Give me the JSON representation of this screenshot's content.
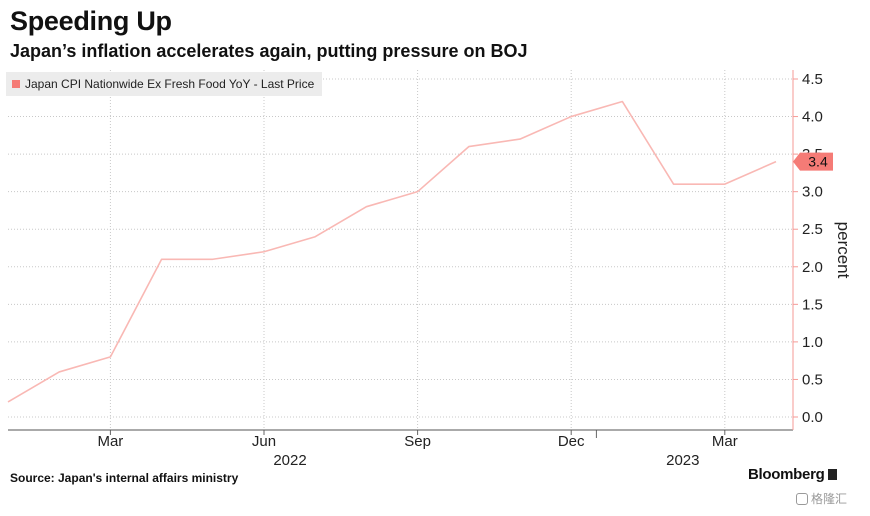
{
  "header": {
    "title": "Speeding Up",
    "subtitle": "Japan’s inflation accelerates again, putting pressure on BOJ"
  },
  "colors": {
    "series_line": "#f9b8b4",
    "marker": "#f57b76",
    "axis": "#f59a96",
    "grid": "#c8c8c8"
  },
  "chart_data": {
    "type": "line",
    "x": [
      "2022-01",
      "2022-02",
      "2022-03",
      "2022-04",
      "2022-05",
      "2022-06",
      "2022-07",
      "2022-08",
      "2022-09",
      "2022-10",
      "2022-11",
      "2022-12",
      "2023-01",
      "2023-02",
      "2023-03",
      "2023-04"
    ],
    "series": [
      {
        "name": "Japan CPI Nationwide Ex Fresh Food YoY - Last Price",
        "values": [
          0.2,
          0.6,
          0.8,
          2.1,
          2.1,
          2.2,
          2.4,
          2.8,
          3.0,
          3.6,
          3.7,
          4.0,
          4.2,
          3.1,
          3.1,
          3.4
        ]
      }
    ],
    "ylabel": "percent",
    "ylim": [
      0,
      4.5
    ],
    "yticks": [
      "0.0",
      "0.5",
      "1.0",
      "1.5",
      "2.0",
      "2.5",
      "3.0",
      "3.5",
      "4.0",
      "4.5"
    ],
    "xticks": [
      "Mar",
      "Jun",
      "Sep",
      "Dec",
      "Mar"
    ],
    "year_labels": [
      "2022",
      "2023"
    ],
    "last_value_label": "3.4",
    "grid": true,
    "legend_position": "top-left"
  },
  "footer": {
    "source": "Source: Japan's internal affairs ministry",
    "brand": "Bloomberg",
    "watermark": "格隆汇"
  }
}
